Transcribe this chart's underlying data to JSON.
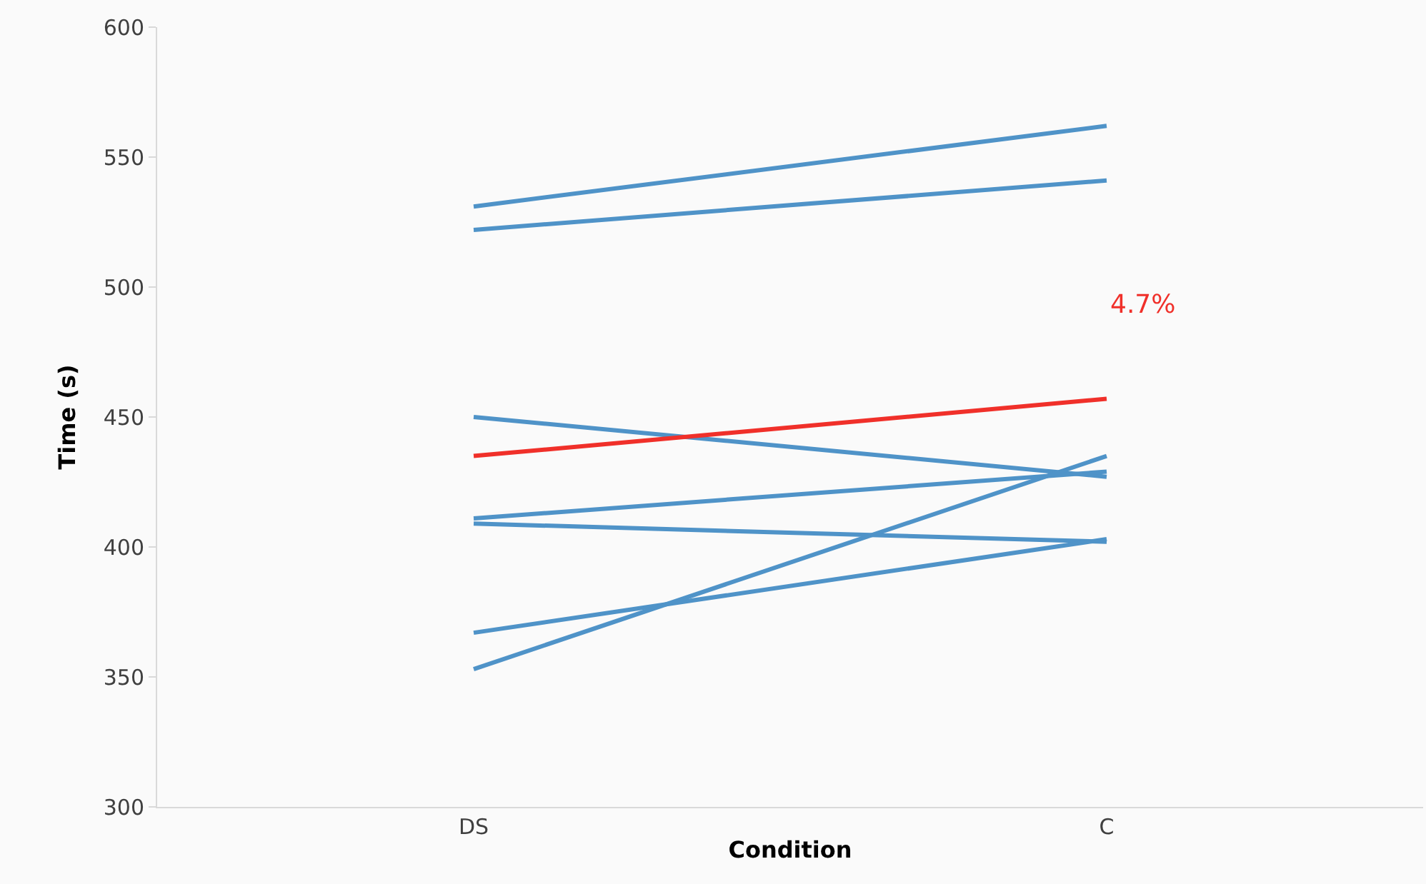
{
  "chart_data": {
    "type": "line",
    "xlabel": "Condition",
    "ylabel": "Time (s)",
    "categories": [
      "DS",
      "C"
    ],
    "series": [
      {
        "color": "#4f93c8",
        "values": [
          531,
          562
        ]
      },
      {
        "color": "#4f93c8",
        "values": [
          522,
          541
        ]
      },
      {
        "color": "#4f93c8",
        "values": [
          450,
          427
        ]
      },
      {
        "color": "#4f93c8",
        "values": [
          411,
          429
        ]
      },
      {
        "color": "#4f93c8",
        "values": [
          409,
          402
        ]
      },
      {
        "color": "#4f93c8",
        "values": [
          367,
          403
        ]
      },
      {
        "color": "#4f93c8",
        "values": [
          353,
          435
        ]
      },
      {
        "color": "#f0302a",
        "values": [
          435,
          457
        ]
      }
    ],
    "annotations": [
      "4.7%"
    ],
    "ylim": [
      300,
      600
    ],
    "yticks": [
      300,
      350,
      400,
      450,
      500,
      550,
      600
    ],
    "marker": "none",
    "line_style": "solid"
  }
}
